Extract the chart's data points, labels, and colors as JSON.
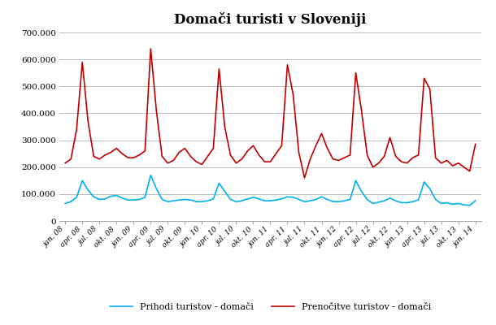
{
  "title": "Domači turisti v Sloveniji",
  "legend_arrivals": "Prihodi turistov - domači",
  "legend_nights": "Prenočitve turistov - domači",
  "color_arrivals": "#00b0f0",
  "color_nights": "#c00000",
  "ylim": [
    0,
    700000
  ],
  "yticks": [
    0,
    100000,
    200000,
    300000,
    400000,
    500000,
    600000,
    700000
  ],
  "ytick_labels": [
    "0",
    "100.000",
    "200.000",
    "300.000",
    "400.000",
    "500.000",
    "600.000",
    "700.000"
  ],
  "xtick_labels": [
    "jan. 08",
    "apr. 08",
    "jul. 08",
    "okt. 08",
    "jan. 09",
    "apr. 09",
    "jul. 09",
    "okt. 09",
    "jan. 10",
    "apr. 10",
    "jul. 10",
    "okt. 10",
    "jan. 11",
    "apr. 11",
    "jul. 11",
    "okt. 11",
    "jan. 12",
    "apr. 12",
    "jul. 12",
    "okt. 12",
    "jan. 13",
    "apr. 13",
    "jul. 13",
    "okt. 13",
    "jan. 14"
  ],
  "nights_monthly": [
    215000,
    230000,
    340000,
    590000,
    370000,
    240000,
    230000,
    245000,
    255000,
    270000,
    250000,
    235000,
    235000,
    245000,
    260000,
    640000,
    410000,
    240000,
    215000,
    225000,
    255000,
    270000,
    240000,
    220000,
    210000,
    240000,
    270000,
    565000,
    350000,
    245000,
    215000,
    230000,
    260000,
    280000,
    245000,
    220000,
    220000,
    250000,
    280000,
    580000,
    470000,
    255000,
    160000,
    230000,
    280000,
    325000,
    270000,
    230000,
    225000,
    235000,
    245000,
    550000,
    410000,
    245000,
    200000,
    215000,
    240000,
    310000,
    240000,
    220000,
    215000,
    235000,
    245000,
    530000,
    490000,
    235000,
    215000,
    225000,
    205000,
    215000,
    200000,
    185000,
    285000
  ],
  "arrivals_monthly": [
    65000,
    72000,
    88000,
    150000,
    115000,
    90000,
    80000,
    82000,
    92000,
    95000,
    85000,
    78000,
    78000,
    80000,
    88000,
    170000,
    120000,
    80000,
    72000,
    75000,
    78000,
    80000,
    78000,
    72000,
    72000,
    75000,
    82000,
    140000,
    110000,
    80000,
    72000,
    75000,
    82000,
    88000,
    82000,
    75000,
    75000,
    78000,
    82000,
    90000,
    88000,
    80000,
    72000,
    75000,
    80000,
    90000,
    80000,
    72000,
    72000,
    75000,
    80000,
    150000,
    110000,
    80000,
    65000,
    70000,
    75000,
    85000,
    75000,
    68000,
    68000,
    72000,
    78000,
    145000,
    120000,
    80000,
    65000,
    68000,
    62000,
    65000,
    60000,
    58000,
    75000
  ]
}
